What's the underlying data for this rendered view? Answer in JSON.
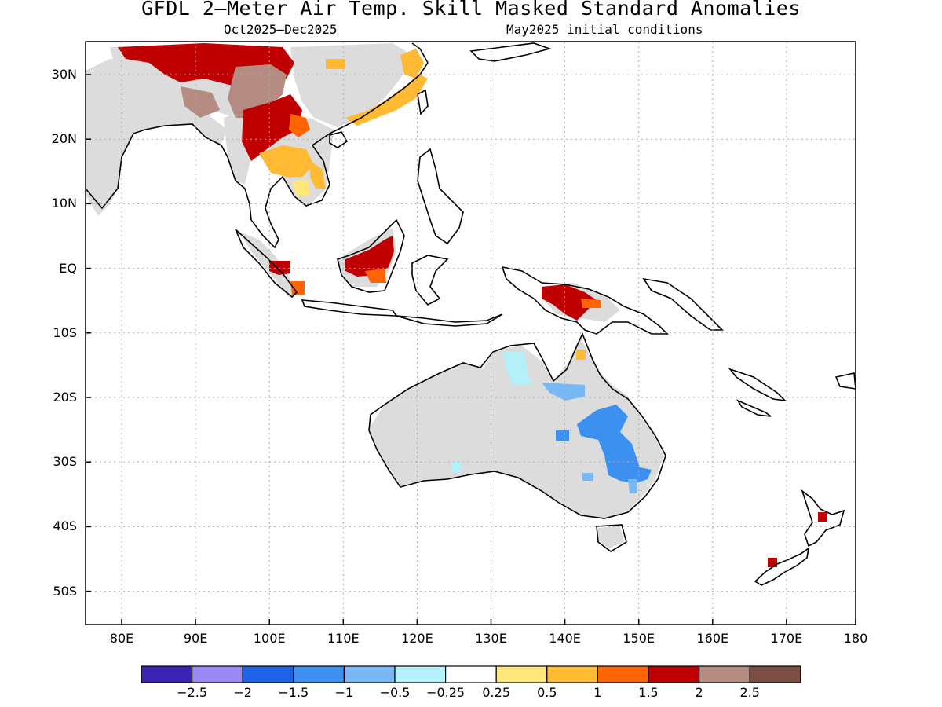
{
  "title": "GFDL 2—Meter Air Temp. Skill Masked Standard Anomalies",
  "subtitle_left": "Oct2025—Dec2025",
  "subtitle_right": "May2025 initial conditions",
  "lat_labels": [
    "30N",
    "20N",
    "10N",
    "EQ",
    "10S",
    "20S",
    "30S",
    "40S",
    "50S"
  ],
  "lon_labels": [
    "80E",
    "90E",
    "100E",
    "110E",
    "120E",
    "130E",
    "140E",
    "150E",
    "160E",
    "170E",
    "180"
  ],
  "colorbar": {
    "colors": [
      "#3b22b4",
      "#9a88f5",
      "#1e64e6",
      "#3c91f0",
      "#78b9f5",
      "#b4f0fa",
      "#ffffff",
      "#ffe678",
      "#ffb932",
      "#ff6400",
      "#c00000",
      "#b48c82",
      "#7a4e42"
    ],
    "labels": [
      "−2.5",
      "−2",
      "−1.5",
      "−1",
      "−0.5",
      "−0.25",
      "0.25",
      "0.5",
      "1",
      "1.5",
      "2",
      "2.5"
    ]
  },
  "colors": {
    "land_masked": "#dcdcdc",
    "coast": "#000000",
    "grid": "#aaaaaa"
  }
}
